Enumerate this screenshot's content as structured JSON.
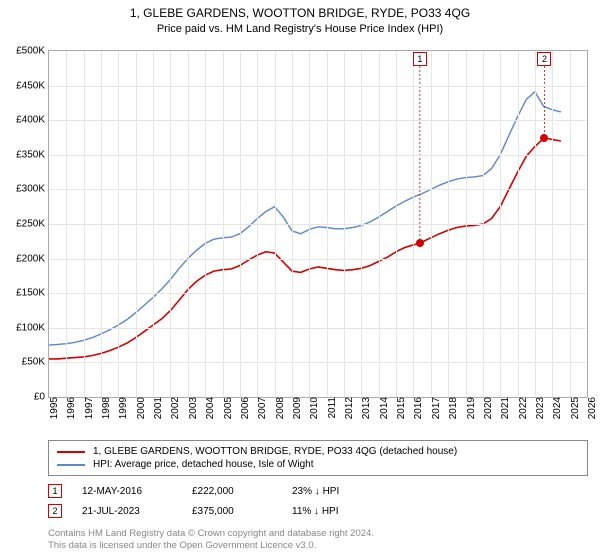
{
  "title": "1, GLEBE GARDENS, WOOTTON BRIDGE, RYDE, PO33 4QG",
  "subtitle": "Price paid vs. HM Land Registry's House Price Index (HPI)",
  "chart": {
    "type": "line",
    "background_color": "#ffffff",
    "grid_color": "#e6e6e6",
    "axis_color": "#aaaaaa",
    "x": {
      "min": 1995,
      "max": 2026,
      "ticks": [
        1995,
        1996,
        1997,
        1998,
        1999,
        2000,
        2001,
        2002,
        2003,
        2004,
        2005,
        2006,
        2007,
        2008,
        2009,
        2010,
        2011,
        2012,
        2013,
        2014,
        2015,
        2016,
        2017,
        2018,
        2019,
        2020,
        2021,
        2022,
        2023,
        2024,
        2025,
        2026
      ]
    },
    "y": {
      "min": 0,
      "max": 500000,
      "ticks": [
        0,
        50000,
        100000,
        150000,
        200000,
        250000,
        300000,
        350000,
        400000,
        450000,
        500000
      ],
      "labels": [
        "£0",
        "£50K",
        "£100K",
        "£150K",
        "£200K",
        "£250K",
        "£300K",
        "£350K",
        "£400K",
        "£450K",
        "£500K"
      ]
    },
    "series": [
      {
        "id": "price_paid",
        "label": "1, GLEBE GARDENS, WOOTTON BRIDGE, RYDE, PO33 4QG (detached house)",
        "color": "#d40000",
        "line_width": 1.6,
        "points": [
          [
            1995.0,
            55000
          ],
          [
            1995.5,
            55000
          ],
          [
            1996.0,
            56000
          ],
          [
            1996.5,
            57000
          ],
          [
            1997.0,
            58000
          ],
          [
            1997.5,
            60000
          ],
          [
            1998.0,
            63000
          ],
          [
            1998.5,
            67000
          ],
          [
            1999.0,
            72000
          ],
          [
            1999.5,
            78000
          ],
          [
            2000.0,
            86000
          ],
          [
            2000.5,
            95000
          ],
          [
            2001.0,
            104000
          ],
          [
            2001.5,
            113000
          ],
          [
            2002.0,
            125000
          ],
          [
            2002.5,
            140000
          ],
          [
            2003.0,
            155000
          ],
          [
            2003.5,
            167000
          ],
          [
            2004.0,
            176000
          ],
          [
            2004.5,
            182000
          ],
          [
            2005.0,
            184000
          ],
          [
            2005.5,
            185000
          ],
          [
            2006.0,
            190000
          ],
          [
            2006.5,
            198000
          ],
          [
            2007.0,
            205000
          ],
          [
            2007.5,
            210000
          ],
          [
            2008.0,
            208000
          ],
          [
            2008.5,
            195000
          ],
          [
            2009.0,
            182000
          ],
          [
            2009.5,
            180000
          ],
          [
            2010.0,
            185000
          ],
          [
            2010.5,
            188000
          ],
          [
            2011.0,
            186000
          ],
          [
            2011.5,
            184000
          ],
          [
            2012.0,
            183000
          ],
          [
            2012.5,
            184000
          ],
          [
            2013.0,
            186000
          ],
          [
            2013.5,
            190000
          ],
          [
            2014.0,
            196000
          ],
          [
            2014.5,
            202000
          ],
          [
            2015.0,
            210000
          ],
          [
            2015.5,
            216000
          ],
          [
            2016.0,
            220000
          ],
          [
            2016.37,
            222000
          ],
          [
            2016.5,
            224000
          ],
          [
            2017.0,
            230000
          ],
          [
            2017.5,
            236000
          ],
          [
            2018.0,
            241000
          ],
          [
            2018.5,
            245000
          ],
          [
            2019.0,
            247000
          ],
          [
            2019.5,
            248000
          ],
          [
            2020.0,
            250000
          ],
          [
            2020.5,
            258000
          ],
          [
            2021.0,
            275000
          ],
          [
            2021.5,
            300000
          ],
          [
            2022.0,
            325000
          ],
          [
            2022.5,
            348000
          ],
          [
            2023.0,
            362000
          ],
          [
            2023.55,
            375000
          ],
          [
            2024.0,
            372000
          ],
          [
            2024.5,
            370000
          ]
        ]
      },
      {
        "id": "hpi",
        "label": "HPI: Average price, detached house, Isle of Wight",
        "color": "#5b89c9",
        "line_width": 1.4,
        "points": [
          [
            1995.0,
            75000
          ],
          [
            1995.5,
            76000
          ],
          [
            1996.0,
            77000
          ],
          [
            1996.5,
            79000
          ],
          [
            1997.0,
            82000
          ],
          [
            1997.5,
            86000
          ],
          [
            1998.0,
            91000
          ],
          [
            1998.5,
            97000
          ],
          [
            1999.0,
            104000
          ],
          [
            1999.5,
            112000
          ],
          [
            2000.0,
            122000
          ],
          [
            2000.5,
            133000
          ],
          [
            2001.0,
            144000
          ],
          [
            2001.5,
            156000
          ],
          [
            2002.0,
            170000
          ],
          [
            2002.5,
            186000
          ],
          [
            2003.0,
            200000
          ],
          [
            2003.5,
            212000
          ],
          [
            2004.0,
            222000
          ],
          [
            2004.5,
            228000
          ],
          [
            2005.0,
            230000
          ],
          [
            2005.5,
            231000
          ],
          [
            2006.0,
            236000
          ],
          [
            2006.5,
            246000
          ],
          [
            2007.0,
            258000
          ],
          [
            2007.5,
            268000
          ],
          [
            2008.0,
            275000
          ],
          [
            2008.5,
            260000
          ],
          [
            2009.0,
            240000
          ],
          [
            2009.5,
            236000
          ],
          [
            2010.0,
            242000
          ],
          [
            2010.5,
            246000
          ],
          [
            2011.0,
            245000
          ],
          [
            2011.5,
            243000
          ],
          [
            2012.0,
            243000
          ],
          [
            2012.5,
            245000
          ],
          [
            2013.0,
            248000
          ],
          [
            2013.5,
            253000
          ],
          [
            2014.0,
            260000
          ],
          [
            2014.5,
            268000
          ],
          [
            2015.0,
            276000
          ],
          [
            2015.5,
            283000
          ],
          [
            2016.0,
            289000
          ],
          [
            2016.5,
            294000
          ],
          [
            2017.0,
            300000
          ],
          [
            2017.5,
            306000
          ],
          [
            2018.0,
            311000
          ],
          [
            2018.5,
            315000
          ],
          [
            2019.0,
            317000
          ],
          [
            2019.5,
            318000
          ],
          [
            2020.0,
            320000
          ],
          [
            2020.5,
            330000
          ],
          [
            2021.0,
            350000
          ],
          [
            2021.5,
            378000
          ],
          [
            2022.0,
            405000
          ],
          [
            2022.5,
            430000
          ],
          [
            2023.0,
            441000
          ],
          [
            2023.5,
            420000
          ],
          [
            2024.0,
            415000
          ],
          [
            2024.5,
            412000
          ]
        ]
      }
    ],
    "sale_markers": [
      {
        "num": "1",
        "x": 2016.37,
        "y": 222000,
        "color": "#d40000",
        "top_y": 0
      },
      {
        "num": "2",
        "x": 2023.55,
        "y": 375000,
        "color": "#d40000",
        "top_y": 0
      }
    ]
  },
  "legend": {
    "items": [
      {
        "color": "#d40000",
        "label": "1, GLEBE GARDENS, WOOTTON BRIDGE, RYDE, PO33 4QG (detached house)"
      },
      {
        "color": "#5b89c9",
        "label": "HPI: Average price, detached house, Isle of Wight"
      }
    ]
  },
  "sales": [
    {
      "num": "1",
      "color": "#d40000",
      "date": "12-MAY-2016",
      "price": "£222,000",
      "delta": "23% ↓ HPI"
    },
    {
      "num": "2",
      "color": "#d40000",
      "date": "21-JUL-2023",
      "price": "£375,000",
      "delta": "11% ↓ HPI"
    }
  ],
  "footer": {
    "line1": "Contains HM Land Registry data © Crown copyright and database right 2024.",
    "line2": "This data is licensed under the Open Government Licence v3.0."
  }
}
